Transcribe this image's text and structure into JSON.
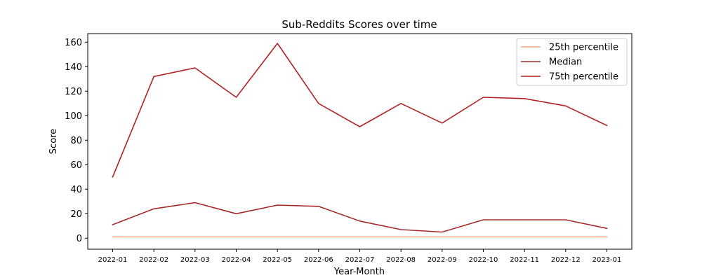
{
  "chart_data": {
    "type": "line",
    "title": "Sub-Reddits Scores over time",
    "xlabel": "Year-Month",
    "ylabel": "Score",
    "categories": [
      "2022-01",
      "2022-02",
      "2022-03",
      "2022-04",
      "2022-05",
      "2022-06",
      "2022-07",
      "2022-08",
      "2022-09",
      "2022-10",
      "2022-11",
      "2022-12",
      "2023-01"
    ],
    "ylim": [
      -9,
      167
    ],
    "yticks": [
      0,
      20,
      40,
      60,
      80,
      100,
      120,
      140,
      160
    ],
    "grid": false,
    "legend_position": "top-right",
    "series": [
      {
        "name": "25th percentile",
        "color": "#f4a582",
        "values": [
          1,
          1,
          1,
          1,
          1,
          1,
          1,
          1,
          1,
          1,
          1,
          1,
          1
        ]
      },
      {
        "name": "Median",
        "color": "#a52a2a",
        "values": [
          11,
          24,
          29,
          20,
          27,
          26,
          14,
          7,
          5,
          15,
          15,
          15,
          8
        ]
      },
      {
        "name": "75th percentile",
        "color": "#b22222",
        "values": [
          50,
          132,
          139,
          115,
          159,
          110,
          91,
          110,
          94,
          115,
          114,
          108,
          92
        ]
      }
    ]
  }
}
